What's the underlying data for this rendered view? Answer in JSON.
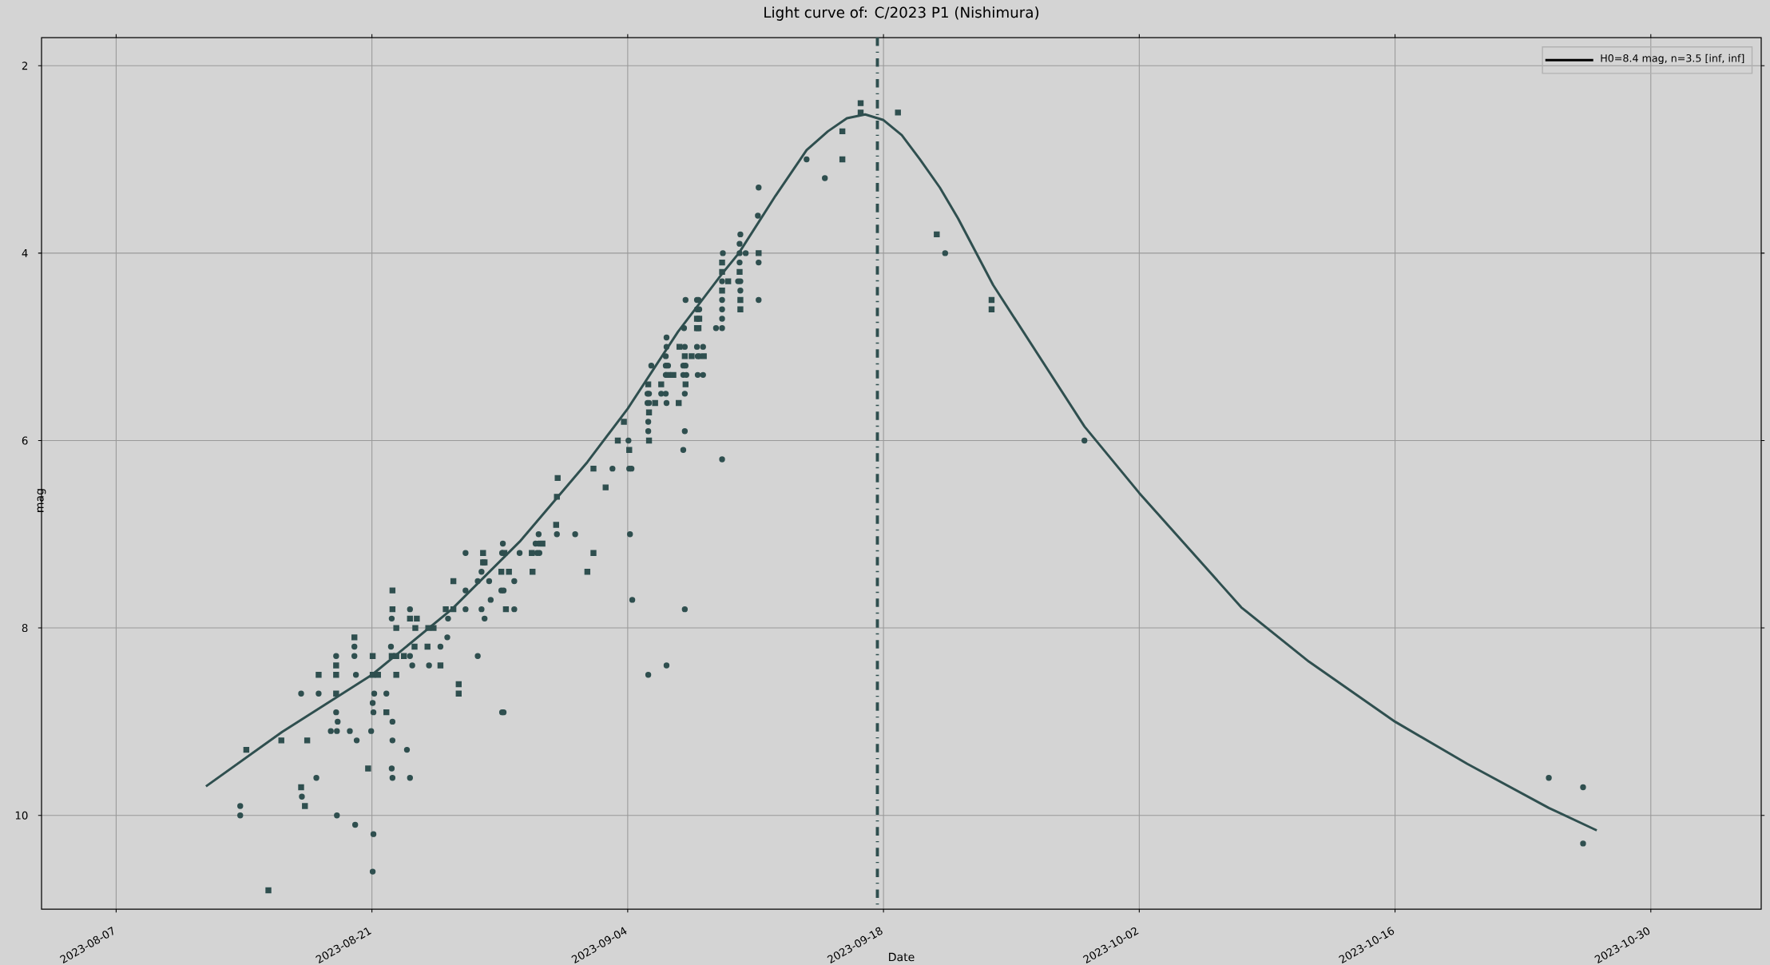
{
  "chart_data": {
    "type": "scatter",
    "title": "Light curve of: C/2023 P1 (Nishimura)",
    "xlabel": "Date",
    "ylabel": "mag",
    "xlim": [
      "2023-08-02T22:00",
      "2023-11-05T01:00"
    ],
    "xticks": [
      "2023-08-07",
      "2023-08-21",
      "2023-09-04",
      "2023-09-18",
      "2023-10-02",
      "2023-10-16",
      "2023-10-30"
    ],
    "ylim": [
      11.0,
      1.7
    ],
    "yticks": [
      2,
      4,
      6,
      8,
      10
    ],
    "grid": true,
    "legend": "top right",
    "ref_lines": [
      {
        "axis": "x",
        "value": "2023-09-17T16:00",
        "color": "#2f4f4f",
        "line_style": "dashdot"
      }
    ],
    "series": [
      {
        "type": "scatter",
        "marker": "circle",
        "color": "#2f4f4f",
        "x": [
          "2023-08-13T19:00",
          "2023-08-13T19:00",
          "2023-08-17T03:00",
          "2023-08-17T04:00",
          "2023-08-17T23:00",
          "2023-08-18T02:00",
          "2023-08-18T18:00",
          "2023-08-19T01:00",
          "2023-08-19T03:00",
          "2023-08-19T02:00",
          "2023-08-19T02:00",
          "2023-08-19T01:00",
          "2023-08-19T19:00",
          "2023-08-20T01:00",
          "2023-08-20T01:00",
          "2023-08-20T03:00",
          "2023-08-20T04:00",
          "2023-08-20T02:00",
          "2023-08-20T23:00",
          "2023-08-21T03:00",
          "2023-08-21T01:00",
          "2023-08-21T02:00",
          "2023-08-21T02:00",
          "2023-08-21T01:00",
          "2023-08-21T19:00",
          "2023-08-22T01:00",
          "2023-08-22T02:00",
          "2023-08-22T03:00",
          "2023-08-22T03:00",
          "2023-08-22T03:00",
          "2023-08-22T02:00",
          "2023-08-22T22:00",
          "2023-08-23T02:00",
          "2023-08-23T02:00",
          "2023-08-23T02:00",
          "2023-08-23T05:00",
          "2023-08-24T03:00",
          "2023-08-24T18:00",
          "2023-08-25T03:00",
          "2023-08-25T04:00",
          "2023-08-26T03:00",
          "2023-08-26T03:00",
          "2023-08-26T03:00",
          "2023-08-26T19:00",
          "2023-08-26T19:00",
          "2023-08-27T00:00",
          "2023-08-27T00:00",
          "2023-08-27T04:00",
          "2023-08-27T10:00",
          "2023-08-27T12:00",
          "2023-08-28T04:00",
          "2023-08-28T03:00",
          "2023-08-28T02:00",
          "2023-08-28T05:00",
          "2023-08-28T19:00",
          "2023-08-28T19:00",
          "2023-08-28T03:00",
          "2023-08-28T05:00",
          "2023-08-29T02:00",
          "2023-08-29T23:00",
          "2023-08-30T03:00",
          "2023-08-30T01:00",
          "2023-08-30T04:00",
          "2023-08-30T03:00",
          "2023-08-31T03:00",
          "2023-09-01T03:00",
          "2023-09-03T04:00",
          "2023-09-04T02:00",
          "2023-09-04T05:00",
          "2023-09-04T01:00",
          "2023-09-04T03:00",
          "2023-09-04T06:00",
          "2023-09-05T03:00",
          "2023-09-06T03:00",
          "2023-09-05T07:00",
          "2023-09-05T02:00",
          "2023-09-05T04:00",
          "2023-09-05T02:00",
          "2023-09-05T04:00",
          "2023-09-05T03:00",
          "2023-09-05T03:00",
          "2023-09-06T03:00",
          "2023-09-06T02:00",
          "2023-09-06T02:00",
          "2023-09-06T05:00",
          "2023-09-06T03:00",
          "2023-09-05T20:00",
          "2023-09-06T02:00",
          "2023-09-06T03:00",
          "2023-09-06T02:00",
          "2023-09-07T03:00",
          "2023-09-07T01:00",
          "2023-09-07T04:00",
          "2023-09-07T01:00",
          "2023-09-07T05:00",
          "2023-09-07T03:00",
          "2023-09-07T03:00",
          "2023-09-07T01:00",
          "2023-09-07T03:00",
          "2023-09-07T02:00",
          "2023-09-07T04:00",
          "2023-09-07T19:00",
          "2023-09-07T20:00",
          "2023-09-07T22:00",
          "2023-09-07T20:00",
          "2023-09-07T19:00",
          "2023-09-07T21:00",
          "2023-09-07T19:00",
          "2023-09-07T22:00",
          "2023-09-08T03:00",
          "2023-09-08T03:00",
          "2023-09-08T20:00",
          "2023-09-09T04:00",
          "2023-09-09T04:00",
          "2023-09-09T04:00",
          "2023-09-09T04:00",
          "2023-09-09T04:00",
          "2023-09-09T05:00",
          "2023-09-09T04:00",
          "2023-09-10T04:00",
          "2023-09-10T03:00",
          "2023-09-10T03:00",
          "2023-09-10T11:00",
          "2023-09-10T03:00",
          "2023-09-10T01:00",
          "2023-09-10T04:00",
          "2023-09-10T04:00",
          "2023-09-11T04:00",
          "2023-09-11T03:00",
          "2023-09-11T04:00",
          "2023-09-11T04:00",
          "2023-09-13T19:00",
          "2023-09-14T19:00",
          "2023-09-21T09:00",
          "2023-09-29T00:00",
          "2023-10-24T10:00",
          "2023-10-26T07:00",
          "2023-10-26T07:00"
        ],
        "values": [
          9.9,
          10.0,
          8.7,
          9.8,
          9.6,
          8.7,
          9.1,
          8.9,
          9.0,
          9.1,
          10.0,
          8.3,
          9.1,
          8.2,
          8.3,
          8.5,
          9.2,
          10.1,
          9.1,
          8.7,
          8.8,
          8.9,
          10.2,
          10.6,
          8.7,
          8.2,
          7.9,
          9.0,
          9.2,
          9.6,
          9.5,
          9.3,
          7.8,
          8.3,
          9.6,
          8.4,
          8.4,
          8.2,
          8.1,
          7.9,
          7.2,
          7.6,
          7.8,
          7.5,
          8.3,
          7.4,
          7.8,
          7.9,
          7.5,
          7.7,
          7.1,
          7.2,
          7.6,
          7.6,
          7.5,
          7.8,
          8.9,
          8.9,
          7.2,
          7.1,
          7.1,
          7.2,
          7.2,
          7.0,
          7.0,
          7.0,
          6.3,
          6.3,
          6.3,
          6.0,
          7.0,
          7.7,
          8.5,
          8.4,
          5.2,
          5.5,
          5.5,
          5.6,
          5.6,
          5.8,
          5.9,
          5.0,
          5.1,
          5.2,
          5.2,
          4.9,
          5.5,
          5.5,
          5.6,
          5.3,
          5.0,
          5.2,
          5.2,
          5.3,
          5.3,
          5.5,
          5.9,
          6.1,
          7.8,
          4.8,
          4.5,
          5.0,
          5.1,
          5.1,
          5.3,
          4.5,
          4.5,
          4.6,
          4.6,
          5.0,
          5.3,
          4.8,
          4.8,
          4.7,
          4.6,
          4.5,
          4.3,
          4.0,
          6.2,
          3.8,
          3.9,
          4.0,
          4.0,
          4.1,
          4.3,
          4.3,
          4.4,
          3.3,
          3.6,
          4.1,
          4.5,
          3.0,
          3.2,
          4.0,
          6.0,
          9.6,
          9.7,
          10.3
        ]
      },
      {
        "type": "scatter",
        "marker": "square",
        "color": "#2f4f4f",
        "x": [
          "2023-08-14T03:00",
          "2023-08-15T08:00",
          "2023-08-16T01:00",
          "2023-08-17T03:00",
          "2023-08-17T08:00",
          "2023-08-17T11:00",
          "2023-08-18T02:00",
          "2023-08-19T01:00",
          "2023-08-19T01:00",
          "2023-08-19T01:00",
          "2023-08-20T01:00",
          "2023-08-20T19:00",
          "2023-08-21T01:00",
          "2023-08-21T01:00",
          "2023-08-21T08:00",
          "2023-08-21T19:00",
          "2023-08-22T03:00",
          "2023-08-22T03:00",
          "2023-08-22T08:00",
          "2023-08-22T02:00",
          "2023-08-22T08:00",
          "2023-08-22T18:00",
          "2023-08-22T08:00",
          "2023-08-23T02:00",
          "2023-08-23T11:00",
          "2023-08-23T09:00",
          "2023-08-23T08:00",
          "2023-08-24T02:00",
          "2023-08-24T09:00",
          "2023-08-24T01:00",
          "2023-08-24T18:00",
          "2023-08-25T01:00",
          "2023-08-25T11:00",
          "2023-08-25T11:00",
          "2023-08-25T18:00",
          "2023-08-25T18:00",
          "2023-08-27T02:00",
          "2023-08-27T02:00",
          "2023-08-27T04:00",
          "2023-08-28T06:00",
          "2023-08-28T02:00",
          "2023-08-28T12:00",
          "2023-08-28T08:00",
          "2023-08-29T18:00",
          "2023-08-29T19:00",
          "2023-08-30T08:00",
          "2023-08-31T02:00",
          "2023-08-31T03:00",
          "2023-08-31T04:00",
          "2023-09-01T19:00",
          "2023-09-02T03:00",
          "2023-09-02T19:00",
          "2023-09-02T03:00",
          "2023-09-03T11:00",
          "2023-09-03T19:00",
          "2023-09-04T02:00",
          "2023-09-05T03:00",
          "2023-09-05T04:00",
          "2023-09-05T04:00",
          "2023-09-05T12:00",
          "2023-09-05T20:00",
          "2023-09-06T19:00",
          "2023-09-06T05:00",
          "2023-09-06T12:00",
          "2023-09-06T20:00",
          "2023-09-07T03:00",
          "2023-09-07T12:00",
          "2023-09-08T04:00",
          "2023-09-07T04:00",
          "2023-09-07T19:00",
          "2023-09-07T22:00",
          "2023-09-07T19:00",
          "2023-09-07T21:00",
          "2023-09-09T04:00",
          "2023-09-09T04:00",
          "2023-09-09T04:00",
          "2023-09-09T12:00",
          "2023-09-10T03:00",
          "2023-09-10T04:00",
          "2023-09-10T04:00",
          "2023-09-11T04:00",
          "2023-09-15T18:00",
          "2023-09-15T18:00",
          "2023-09-16T18:00",
          "2023-09-16T18:00",
          "2023-09-18T19:00",
          "2023-09-20T22:00",
          "2023-09-23T22:00",
          "2023-09-23T22:00"
        ],
        "values": [
          9.3,
          10.8,
          9.2,
          9.7,
          9.9,
          9.2,
          8.5,
          8.7,
          8.4,
          8.5,
          8.1,
          9.5,
          8.3,
          8.5,
          8.5,
          8.9,
          7.6,
          7.8,
          8.0,
          8.3,
          8.3,
          8.3,
          8.5,
          7.9,
          7.9,
          8.0,
          8.2,
          8.0,
          8.0,
          8.2,
          8.4,
          7.8,
          7.8,
          7.5,
          8.6,
          8.7,
          7.2,
          7.3,
          7.3,
          7.2,
          7.4,
          7.4,
          7.8,
          7.2,
          7.4,
          7.1,
          6.9,
          6.6,
          6.4,
          7.4,
          7.2,
          6.5,
          6.3,
          6.0,
          5.8,
          6.1,
          5.4,
          5.7,
          6.0,
          5.6,
          5.4,
          5.6,
          5.3,
          5.3,
          5.0,
          5.1,
          5.1,
          5.1,
          5.4,
          4.7,
          4.7,
          4.8,
          4.8,
          4.1,
          4.2,
          4.4,
          4.3,
          4.2,
          4.5,
          4.6,
          4.0,
          2.7,
          3.0,
          2.4,
          2.5,
          2.5,
          3.8,
          4.5,
          4.6
        ]
      },
      {
        "type": "line",
        "name": "H0=8.4   mag, n=3.5  [inf, inf]",
        "color": "#2f4f4f",
        "x": [
          "2023-08-11T22:00",
          "2023-08-16T02:00",
          "2023-08-21T00:00",
          "2023-08-25T09:00",
          "2023-08-29T02:00",
          "2023-09-01T19:00",
          "2023-09-04T00:00",
          "2023-09-06T18:00",
          "2023-09-09T02:00",
          "2023-09-10T02:00",
          "2023-09-12T02:00",
          "2023-09-13T19:00",
          "2023-09-14T23:00",
          "2023-09-16T00:00",
          "2023-09-17T00:00",
          "2023-09-18T00:00",
          "2023-09-19T00:00",
          "2023-09-20T00:00",
          "2023-09-21T02:00",
          "2023-09-22T02:00",
          "2023-09-24T00:00",
          "2023-09-29T00:00",
          "2023-10-02T00:00",
          "2023-10-07T14:00",
          "2023-10-11T07:00",
          "2023-10-16T00:00",
          "2023-10-19T23:00",
          "2023-10-24T10:00",
          "2023-10-27T01:00"
        ],
        "values": [
          9.69,
          9.11,
          8.5,
          7.8,
          7.08,
          6.23,
          5.66,
          4.84,
          4.24,
          4.0,
          3.39,
          2.9,
          2.7,
          2.56,
          2.52,
          2.58,
          2.74,
          3.0,
          3.3,
          3.63,
          4.34,
          5.85,
          6.56,
          7.78,
          8.36,
          9.0,
          9.45,
          9.92,
          10.16
        ]
      }
    ]
  }
}
